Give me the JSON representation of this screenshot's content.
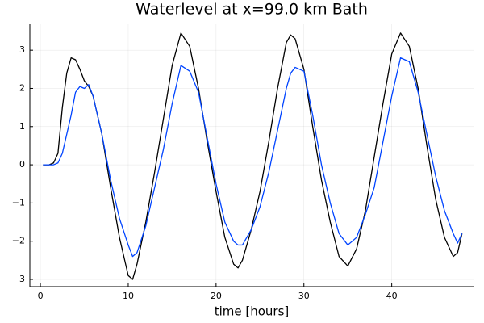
{
  "chart_data": {
    "type": "line",
    "title": "Waterlevel at x=99.0 km Bath",
    "x_label": "time [hours]",
    "x": [
      0.3,
      1,
      1.5,
      2,
      2.5,
      3,
      3.5,
      4,
      4.5,
      5,
      5.5,
      6,
      7,
      8,
      9,
      10,
      10.5,
      11,
      12,
      13,
      14,
      15,
      16,
      17,
      18,
      19,
      20,
      21,
      22,
      22.5,
      23,
      24,
      25,
      26,
      27,
      28,
      28.5,
      29,
      30,
      31,
      32,
      33,
      34,
      35,
      36,
      37,
      38,
      39,
      40,
      41,
      42,
      43,
      44,
      45,
      46,
      47,
      47.5,
      48
    ],
    "series": [
      {
        "color": "#000000",
        "values": [
          0,
          0,
          0.05,
          0.3,
          1.5,
          2.4,
          2.8,
          2.75,
          2.5,
          2.2,
          2.05,
          1.8,
          0.8,
          -0.6,
          -1.9,
          -2.9,
          -3.0,
          -2.6,
          -1.5,
          -0.2,
          1.2,
          2.6,
          3.45,
          3.1,
          2.0,
          0.6,
          -0.7,
          -1.9,
          -2.6,
          -2.7,
          -2.5,
          -1.7,
          -0.7,
          0.6,
          2.0,
          3.2,
          3.4,
          3.3,
          2.5,
          1.0,
          -0.4,
          -1.5,
          -2.4,
          -2.65,
          -2.2,
          -1.2,
          0.2,
          1.6,
          2.9,
          3.45,
          3.1,
          2.0,
          0.5,
          -0.9,
          -1.9,
          -2.4,
          -2.3,
          -1.8
        ]
      },
      {
        "color": "#0044ff",
        "values": [
          0,
          0,
          0,
          0.05,
          0.3,
          0.8,
          1.3,
          1.9,
          2.05,
          2.0,
          2.1,
          1.8,
          0.8,
          -0.4,
          -1.4,
          -2.1,
          -2.4,
          -2.3,
          -1.6,
          -0.6,
          0.4,
          1.6,
          2.6,
          2.45,
          1.9,
          0.7,
          -0.5,
          -1.5,
          -2.0,
          -2.1,
          -2.1,
          -1.7,
          -1.1,
          -0.2,
          0.9,
          2.0,
          2.4,
          2.55,
          2.45,
          1.3,
          0.0,
          -1.0,
          -1.8,
          -2.1,
          -1.9,
          -1.3,
          -0.6,
          0.6,
          1.8,
          2.8,
          2.7,
          1.9,
          0.8,
          -0.3,
          -1.2,
          -1.8,
          -2.05,
          -1.8
        ]
      }
    ],
    "xlim": [
      -1.2,
      49.4
    ],
    "xticks": [
      0,
      10,
      20,
      30,
      40
    ],
    "ylim": [
      -3.19,
      3.68
    ],
    "yticks": [
      {
        "value": -3,
        "label": "−3"
      },
      {
        "value": -2,
        "label": "−2"
      },
      {
        "value": -1,
        "label": "−1"
      },
      0,
      1,
      2,
      3
    ],
    "grid": true
  }
}
